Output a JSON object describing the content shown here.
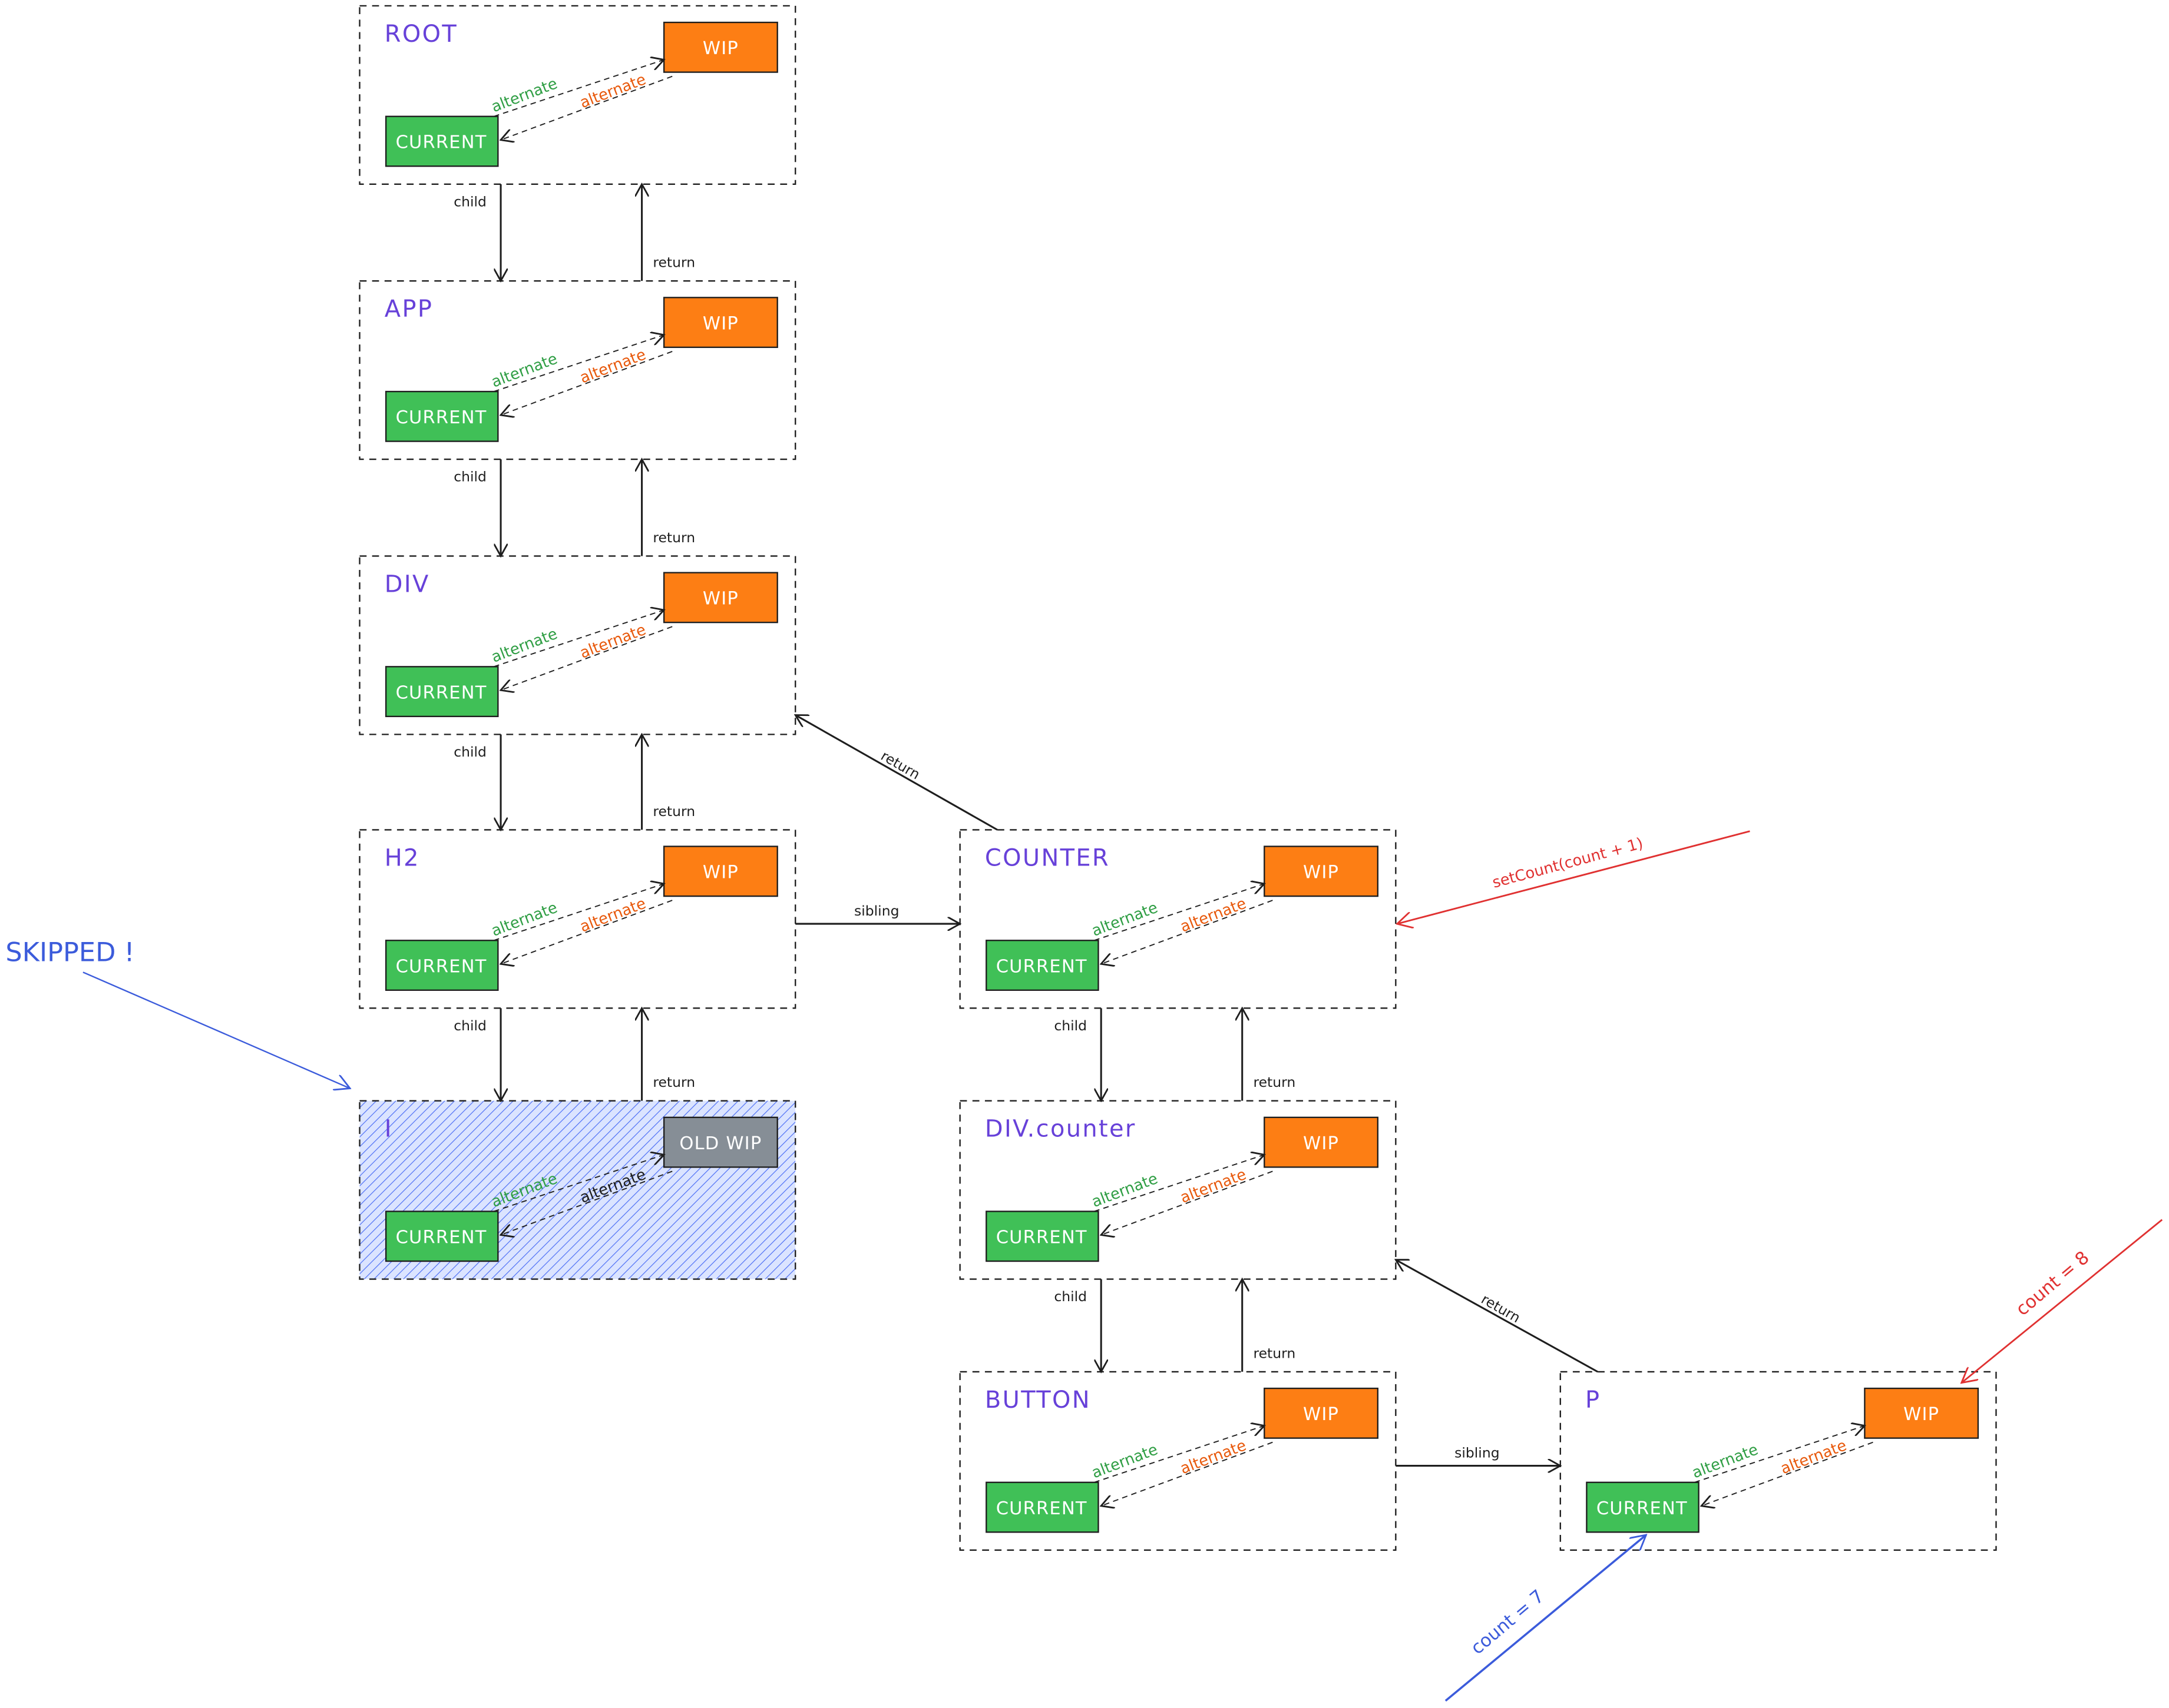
{
  "colors": {
    "node_label": "#6741d9",
    "current_fill": "#40c057",
    "wip_fill": "#fd7e14",
    "old_wip_fill": "#868e96",
    "alternate_green": "#2f9e44",
    "alternate_orange": "#e8590c",
    "annotation_red": "#e03131",
    "annotation_blue": "#3b5bdb",
    "skipped_hatch": "#4c6ef5"
  },
  "nodes": [
    {
      "label": "ROOT",
      "current": "CURRENT",
      "wip": "WIP",
      "alt_to_wip": "alternate",
      "alt_to_current": "alternate"
    },
    {
      "label": "APP",
      "current": "CURRENT",
      "wip": "WIP",
      "alt_to_wip": "alternate",
      "alt_to_current": "alternate"
    },
    {
      "label": "DIV",
      "current": "CURRENT",
      "wip": "WIP",
      "alt_to_wip": "alternate",
      "alt_to_current": "alternate"
    },
    {
      "label": "H2",
      "current": "CURRENT",
      "wip": "WIP",
      "alt_to_wip": "alternate",
      "alt_to_current": "alternate"
    },
    {
      "label": "I",
      "current": "CURRENT",
      "wip": "OLD WIP",
      "alt_to_wip": "alternate",
      "alt_to_current": "alternate",
      "skipped": true
    },
    {
      "label": "COUNTER",
      "current": "CURRENT",
      "wip": "WIP",
      "alt_to_wip": "alternate",
      "alt_to_current": "alternate"
    },
    {
      "label": "DIV.counter",
      "current": "CURRENT",
      "wip": "WIP",
      "alt_to_wip": "alternate",
      "alt_to_current": "alternate"
    },
    {
      "label": "BUTTON",
      "current": "CURRENT",
      "wip": "WIP",
      "alt_to_wip": "alternate",
      "alt_to_current": "alternate"
    },
    {
      "label": "P",
      "current": "CURRENT",
      "wip": "WIP",
      "alt_to_wip": "alternate",
      "alt_to_current": "alternate"
    }
  ],
  "edges": [
    {
      "from": "ROOT",
      "to": "APP",
      "label": "child"
    },
    {
      "from": "APP",
      "to": "ROOT",
      "label": "return"
    },
    {
      "from": "APP",
      "to": "DIV",
      "label": "child"
    },
    {
      "from": "DIV",
      "to": "APP",
      "label": "return"
    },
    {
      "from": "DIV",
      "to": "H2",
      "label": "child"
    },
    {
      "from": "H2",
      "to": "DIV",
      "label": "return"
    },
    {
      "from": "H2",
      "to": "I",
      "label": "child"
    },
    {
      "from": "I",
      "to": "H2",
      "label": "return"
    },
    {
      "from": "H2",
      "to": "COUNTER",
      "label": "sibling"
    },
    {
      "from": "COUNTER",
      "to": "DIV",
      "label": "return"
    },
    {
      "from": "COUNTER",
      "to": "DIV.counter",
      "label": "child"
    },
    {
      "from": "DIV.counter",
      "to": "COUNTER",
      "label": "return"
    },
    {
      "from": "DIV.counter",
      "to": "BUTTON",
      "label": "child"
    },
    {
      "from": "BUTTON",
      "to": "DIV.counter",
      "label": "return"
    },
    {
      "from": "BUTTON",
      "to": "P",
      "label": "sibling"
    },
    {
      "from": "P",
      "to": "DIV.counter",
      "label": "return"
    }
  ],
  "annotations": {
    "skipped": "SKIPPED !",
    "set_count": "setCount(count + 1)",
    "count_new": "count = 8",
    "count_old": "count = 7"
  }
}
